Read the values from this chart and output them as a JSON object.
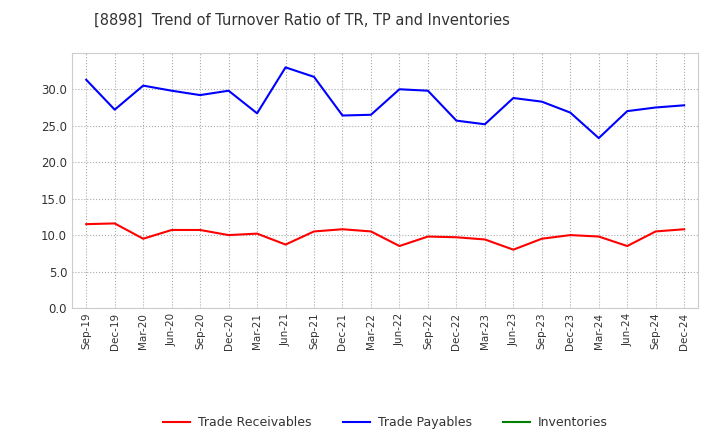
{
  "title": "[8898]  Trend of Turnover Ratio of TR, TP and Inventories",
  "x_labels": [
    "Sep-19",
    "Dec-19",
    "Mar-20",
    "Jun-20",
    "Sep-20",
    "Dec-20",
    "Mar-21",
    "Jun-21",
    "Sep-21",
    "Dec-21",
    "Mar-22",
    "Jun-22",
    "Sep-22",
    "Dec-22",
    "Mar-23",
    "Jun-23",
    "Sep-23",
    "Dec-23",
    "Mar-24",
    "Jun-24",
    "Sep-24",
    "Dec-24"
  ],
  "trade_receivables": [
    11.5,
    11.6,
    9.5,
    10.7,
    10.7,
    10.0,
    10.2,
    8.7,
    10.5,
    10.8,
    10.5,
    8.5,
    9.8,
    9.7,
    9.4,
    8.0,
    9.5,
    10.0,
    9.8,
    8.5,
    10.5,
    10.8
  ],
  "trade_payables": [
    31.3,
    27.2,
    30.5,
    29.8,
    29.2,
    29.8,
    26.7,
    33.0,
    31.7,
    26.4,
    26.5,
    30.0,
    29.8,
    25.7,
    25.2,
    28.8,
    28.3,
    26.8,
    23.3,
    27.0,
    27.5,
    27.8
  ],
  "inventories": [
    null,
    null,
    null,
    null,
    null,
    null,
    null,
    null,
    null,
    null,
    null,
    null,
    null,
    null,
    null,
    null,
    null,
    null,
    null,
    null,
    null,
    null
  ],
  "ylim": [
    0,
    35
  ],
  "yticks": [
    0.0,
    5.0,
    10.0,
    15.0,
    20.0,
    25.0,
    30.0
  ],
  "colors": {
    "trade_receivables": "#ff0000",
    "trade_payables": "#0000ff",
    "inventories": "#008000",
    "grid": "#aaaaaa",
    "background": "#ffffff"
  },
  "legend": {
    "trade_receivables": "Trade Receivables",
    "trade_payables": "Trade Payables",
    "inventories": "Inventories"
  },
  "title_color": "#333333",
  "tick_color": "#333333"
}
